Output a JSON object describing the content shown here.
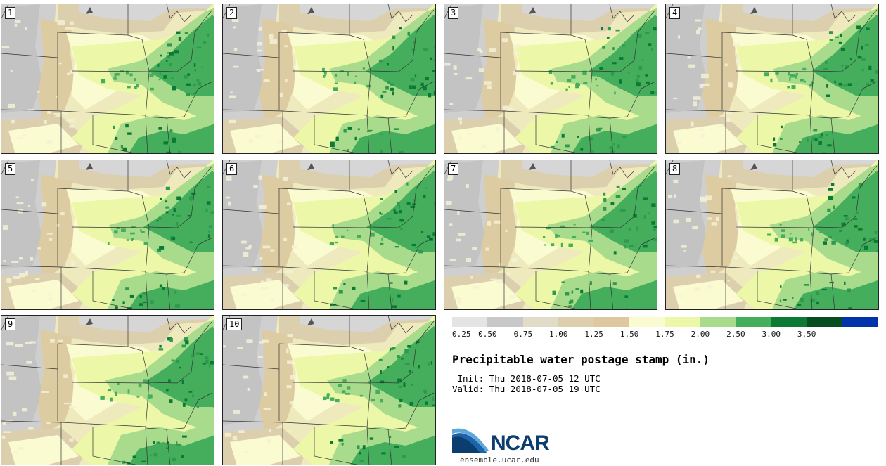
{
  "panels": [
    {
      "label": "1"
    },
    {
      "label": "2"
    },
    {
      "label": "3"
    },
    {
      "label": "4"
    },
    {
      "label": "5"
    },
    {
      "label": "6"
    },
    {
      "label": "7"
    },
    {
      "label": "8"
    },
    {
      "label": "9"
    },
    {
      "label": "10"
    }
  ],
  "colorbar": {
    "colors": [
      "#e4e4e4",
      "#c8c8c8",
      "#e0dcc8",
      "#dccfae",
      "#ddc8a0",
      "#fbfbd2",
      "#ecf8a8",
      "#a8dc8c",
      "#44ae5c",
      "#0a7a34",
      "#064e22",
      "#0032aa"
    ],
    "ticks": [
      "0.25",
      "0.50",
      "0.75",
      "1.00",
      "1.25",
      "1.50",
      "1.75",
      "2.00",
      "2.50",
      "3.00",
      "3.50"
    ]
  },
  "title": "Precipitable water postage stamp (in.)",
  "init_label": " Init:",
  "init_time": "Thu 2018-07-05 12 UTC",
  "valid_label": "Valid:",
  "valid_time": "Thu 2018-07-05 19 UTC",
  "logo_text": "NCAR",
  "site_url": "ensemble.ucar.edu"
}
